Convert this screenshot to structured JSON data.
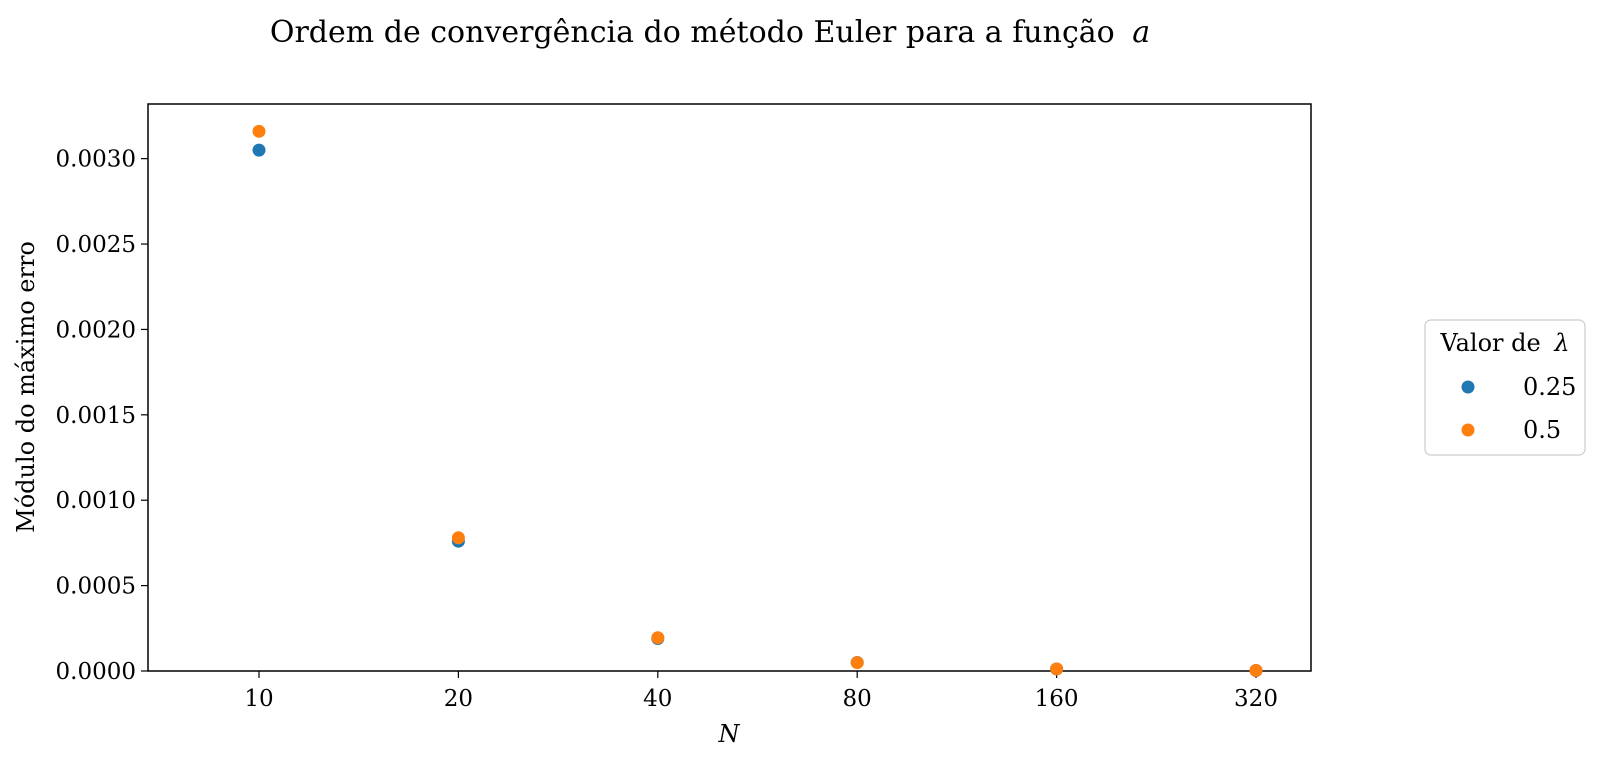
{
  "chart_data": {
    "type": "scatter",
    "title": "Ordem de convergência do método Euler para a função",
    "title_symbol": "a",
    "xlabel": "N",
    "ylabel": "Módulo do máximo erro",
    "categories": [
      "10",
      "20",
      "40",
      "80",
      "160",
      "320"
    ],
    "ylim": [
      0,
      0.00332
    ],
    "yticks": [
      0,
      0.0005,
      0.001,
      0.0015,
      0.002,
      0.0025,
      0.003
    ],
    "ytick_labels": [
      "0.0000",
      "0.0005",
      "0.0010",
      "0.0015",
      "0.0020",
      "0.0025",
      "0.0030"
    ],
    "grid": false,
    "legend": {
      "title": "Valor de",
      "title_symbol": "λ",
      "placement": "outside-right"
    },
    "series": [
      {
        "name": "0.25",
        "color": "#1f77b4",
        "values": [
          0.00305,
          0.00076,
          0.00019,
          5e-05,
          1.2e-05,
          3e-06
        ]
      },
      {
        "name": "0.5",
        "color": "#ff7f0e",
        "values": [
          0.00316,
          0.00078,
          0.000195,
          4.9e-05,
          1.2e-05,
          3e-06
        ]
      }
    ]
  }
}
